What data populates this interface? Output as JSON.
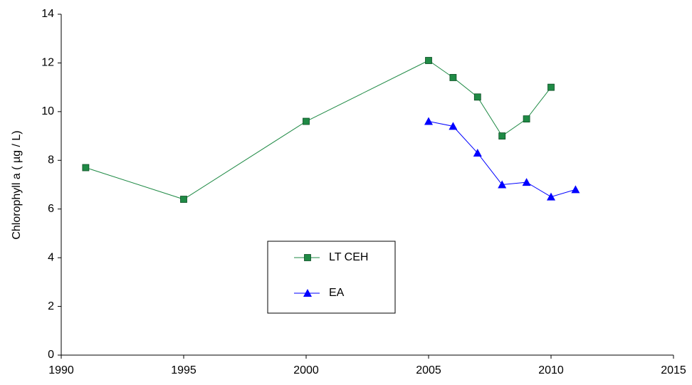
{
  "chart_data": {
    "type": "line",
    "y_label": "Chlorophyll a ( µg / L)",
    "xlim": [
      1990,
      2015
    ],
    "xticks": [
      1990,
      1995,
      2000,
      2005,
      2010,
      2015
    ],
    "ylim": [
      0,
      14
    ],
    "yticks": [
      0,
      2,
      4,
      6,
      8,
      10,
      12,
      14
    ],
    "grid": false,
    "series": [
      {
        "name": "LT CEH",
        "color": "#1f8a45",
        "marker": "square",
        "x": [
          1991,
          1995,
          2000,
          2005,
          2006,
          2007,
          2008,
          2009,
          2010
        ],
        "values": [
          7.7,
          6.4,
          9.6,
          12.1,
          11.4,
          10.6,
          9.0,
          9.7,
          11.0
        ]
      },
      {
        "name": "EA",
        "color": "#0000ff",
        "marker": "triangle",
        "x": [
          2005,
          2006,
          2007,
          2008,
          2009,
          2010,
          2011
        ],
        "values": [
          9.6,
          9.4,
          8.3,
          7.0,
          7.1,
          6.5,
          6.8
        ]
      }
    ]
  }
}
